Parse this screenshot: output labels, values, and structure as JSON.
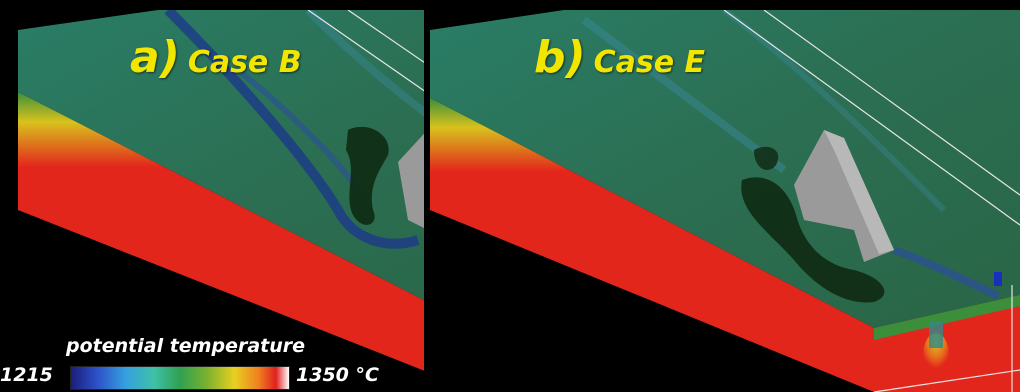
{
  "panels": [
    {
      "id": "a",
      "letter": "a)",
      "case": "Case B"
    },
    {
      "id": "b",
      "letter": "b)",
      "case": "Case E"
    }
  ],
  "colorbar": {
    "title": "potential temperature",
    "min_label": "1215",
    "max_label": "1350 °C",
    "colormap": [
      "#1a1e7a",
      "#2e50c8",
      "#35a0e0",
      "#3fc0a8",
      "#30a050",
      "#78b030",
      "#e8d020",
      "#f08020",
      "#e02020",
      "#ffffff"
    ]
  },
  "colors": {
    "label": "#f2e600",
    "hot_mantle": "#e0231c",
    "surface_green": "#2f7a55",
    "slab_gray": "#9a9a9a",
    "cold_blue": "#1c3a8a",
    "background": "#000000"
  }
}
